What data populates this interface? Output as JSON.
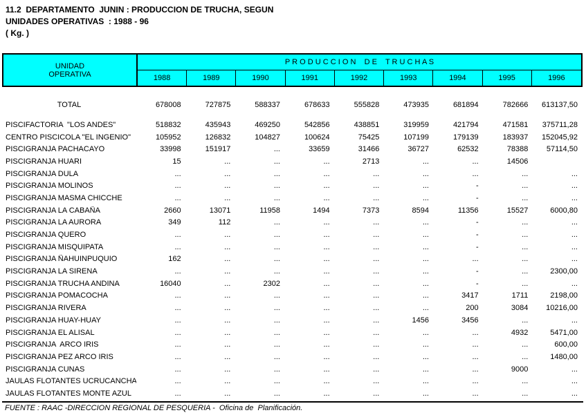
{
  "title": {
    "line1": "11.2  DEPARTAMENTO  JUNIN : PRODUCCION DE TRUCHA, SEGUN",
    "line2": "UNIDADES OPERATIVAS  : 1988 - 96",
    "line3": "( Kg. )"
  },
  "colors": {
    "header_bg": "#00FFFF",
    "border": "#000000",
    "text": "#000000",
    "page_bg": "#FFFFFF"
  },
  "table": {
    "unit_header_line1": "UNIDAD",
    "unit_header_line2": "OPERATIVA",
    "group_header": "P R O D U C C I O N    D E    T R U C H A S",
    "years": [
      "1988",
      "1989",
      "1990",
      "1991",
      "1992",
      "1993",
      "1994",
      "1995",
      "1996"
    ],
    "rows": [
      {
        "label": "TOTAL",
        "style": "total",
        "values": [
          "678008",
          "727875",
          "588337",
          "678633",
          "555828",
          "473935",
          "681894",
          "782666",
          "613137,50"
        ]
      },
      {
        "label": "PISCIFACTORIA  \"LOS ANDES\"",
        "values": [
          "518832",
          "435943",
          "469250",
          "542856",
          "438851",
          "319959",
          "421794",
          "471581",
          "375711,28"
        ]
      },
      {
        "label": "CENTRO PISCICOLA \"EL INGENIO\"",
        "values": [
          "105952",
          "126832",
          "104827",
          "100624",
          "75425",
          "107199",
          "179139",
          "183937",
          "152045,92"
        ]
      },
      {
        "label": "PISCIGRANJA PACHACAYO",
        "values": [
          "33998",
          "151917",
          "...",
          "33659",
          "31466",
          "36727",
          "62532",
          "78388",
          "57114,50"
        ]
      },
      {
        "label": "PISCIGRANJA HUARI",
        "values": [
          "15",
          "...",
          "...",
          "...",
          "2713",
          "...",
          "...",
          "14506",
          ""
        ]
      },
      {
        "label": "PISCIGRANJA DULA",
        "values": [
          "...",
          "...",
          "...",
          "...",
          "...",
          "...",
          "...",
          "...",
          "..."
        ]
      },
      {
        "label": "PISCIGRANJA MOLINOS",
        "values": [
          "...",
          "...",
          "...",
          "...",
          "...",
          "...",
          "-",
          "...",
          "..."
        ]
      },
      {
        "label": "PISCIGRANJA MASMA CHICCHE",
        "values": [
          "...",
          "...",
          "...",
          "...",
          "...",
          "...",
          "-",
          "...",
          "..."
        ]
      },
      {
        "label": "PISCIGRANJA LA CABAÑA",
        "values": [
          "2660",
          "13071",
          "11958",
          "1494",
          "7373",
          "8594",
          "11356",
          "15527",
          "6000,80"
        ]
      },
      {
        "label": "PISCIGRANJA LA AURORA",
        "values": [
          "349",
          "112",
          "...",
          "...",
          "...",
          "...",
          "-",
          "...",
          "..."
        ]
      },
      {
        "label": "PISCIGRANJA QUERO",
        "values": [
          "...",
          "...",
          "...",
          "...",
          "...",
          "...",
          "-",
          "...",
          "..."
        ]
      },
      {
        "label": "PISCIGRANJA MISQUIPATA",
        "values": [
          "...",
          "...",
          "...",
          "...",
          "...",
          "...",
          "-",
          "...",
          "..."
        ]
      },
      {
        "label": "PISCIGRANJA ÑAHUINPUQUIO",
        "values": [
          "162",
          "...",
          "...",
          "...",
          "...",
          "...",
          "...",
          "...",
          "..."
        ]
      },
      {
        "label": "PISCIGRANJA LA SIRENA",
        "values": [
          "...",
          "...",
          "...",
          "...",
          "...",
          "...",
          "-",
          "...",
          "2300,00"
        ]
      },
      {
        "label": "PISCIGRANJA TRUCHA ANDINA",
        "values": [
          "16040",
          "...",
          "2302",
          "...",
          "...",
          "...",
          "-",
          "...",
          "..."
        ]
      },
      {
        "label": "PISCIGRANJA POMACOCHA",
        "values": [
          "...",
          "...",
          "...",
          "...",
          "...",
          "...",
          "3417",
          "1711",
          "2198,00"
        ]
      },
      {
        "label": "PISCIGRANJA RIVERA",
        "values": [
          "...",
          "...",
          "...",
          "...",
          "...",
          "...",
          "200",
          "3084",
          "10216,00"
        ]
      },
      {
        "label": "PISCIGRANJA HUAY-HUAY",
        "values": [
          "...",
          "...",
          "...",
          "...",
          "...",
          "1456",
          "3456",
          "...",
          "..."
        ]
      },
      {
        "label": "PISCIGRANJA EL ALISAL",
        "values": [
          "...",
          "...",
          "...",
          "...",
          "...",
          "...",
          "...",
          "4932",
          "5471,00"
        ]
      },
      {
        "label": "PISCIGRANJA  ARCO IRIS",
        "values": [
          "...",
          "...",
          "...",
          "...",
          "...",
          "...",
          "...",
          "...",
          "600,00"
        ]
      },
      {
        "label": "PISCIGRANJA PEZ ARCO IRIS",
        "values": [
          "...",
          "...",
          "...",
          "...",
          "...",
          "...",
          "...",
          "...",
          "1480,00"
        ]
      },
      {
        "label": "PISCIGRANJA CUNAS",
        "values": [
          "...",
          "...",
          "...",
          "...",
          "...",
          "...",
          "...",
          "9000",
          "..."
        ]
      },
      {
        "label": "JAULAS FLOTANTES UCRUCANCHA",
        "values": [
          "...",
          "...",
          "...",
          "...",
          "...",
          "...",
          "...",
          "...",
          "..."
        ]
      },
      {
        "label": "JAULAS FLOTANTES MONTE AZUL",
        "values": [
          "...",
          "...",
          "...",
          "...",
          "...",
          "...",
          "...",
          "...",
          "..."
        ]
      }
    ]
  },
  "footer": {
    "source": "FUENTE : RAAC -DIRECCION REGIONAL DE PESQUERIA -  Oficina de  Planificación."
  }
}
